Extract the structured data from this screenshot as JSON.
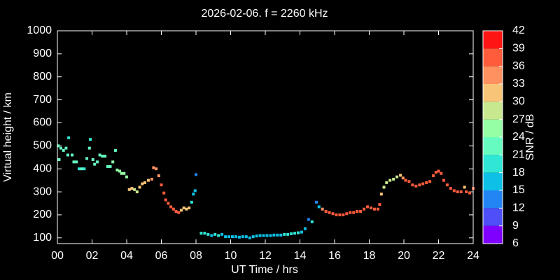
{
  "chart_data": {
    "type": "scatter",
    "title": "2026-02-06. f = 2260 kHz",
    "xlabel": "UT Time / hrs",
    "ylabel": "Virtual height / km",
    "xlim": [
      0,
      24
    ],
    "xticks": [
      {
        "value": 0,
        "label": "00"
      },
      {
        "value": 2,
        "label": "02"
      },
      {
        "value": 4,
        "label": "04"
      },
      {
        "value": 6,
        "label": "06"
      },
      {
        "value": 8,
        "label": "08"
      },
      10,
      12,
      14,
      16,
      18,
      20,
      22,
      24
    ],
    "ylim": [
      75,
      1000
    ],
    "yticks": [
      100,
      200,
      300,
      400,
      500,
      600,
      700,
      800,
      900,
      1000
    ],
    "colorbar": {
      "label": "SNR / dB",
      "lim": [
        6,
        42
      ],
      "ticks": [
        6,
        9,
        12,
        15,
        18,
        21,
        24,
        27,
        30,
        33,
        36,
        39,
        42
      ],
      "colors": [
        "#8000ff",
        "#4f4ff9",
        "#2385f3",
        "#0ec0e6",
        "#30e6d4",
        "#66fcc0",
        "#94ffa4",
        "#c8e890",
        "#f8c478",
        "#ff9060",
        "#ff5c3c",
        "#ff1414"
      ]
    },
    "x": [
      0.05,
      0.1,
      0.2,
      0.35,
      0.5,
      0.6,
      0.65,
      0.85,
      0.95,
      1.1,
      1.25,
      1.4,
      1.55,
      1.7,
      1.85,
      1.9,
      2.05,
      2.15,
      2.3,
      2.45,
      2.6,
      2.75,
      2.9,
      3.05,
      3.2,
      3.35,
      3.45,
      3.6,
      3.7,
      3.85,
      4.0,
      4.15,
      4.3,
      4.45,
      4.6,
      4.75,
      4.9,
      5.05,
      5.25,
      5.45,
      5.55,
      5.7,
      5.85,
      6.0,
      6.15,
      6.25,
      6.4,
      6.55,
      6.7,
      6.85,
      7.0,
      7.15,
      7.3,
      7.45,
      7.6,
      7.75,
      7.85,
      7.95,
      8.0,
      8.3,
      8.5,
      8.7,
      8.9,
      9.1,
      9.3,
      9.5,
      9.7,
      9.9,
      10.1,
      10.3,
      10.5,
      10.7,
      10.9,
      11.1,
      11.3,
      11.5,
      11.7,
      11.9,
      12.1,
      12.3,
      12.5,
      12.7,
      12.9,
      13.1,
      13.3,
      13.5,
      13.7,
      13.9,
      14.1,
      14.3,
      14.5,
      14.7,
      14.95,
      15.1,
      15.3,
      15.5,
      15.7,
      15.9,
      16.1,
      16.3,
      16.5,
      16.7,
      16.9,
      17.1,
      17.3,
      17.5,
      17.7,
      17.9,
      18.1,
      18.3,
      18.5,
      18.6,
      18.7,
      18.85,
      19.0,
      19.2,
      19.4,
      19.6,
      19.8,
      19.95,
      20.1,
      20.3,
      20.5,
      20.7,
      20.9,
      21.1,
      21.3,
      21.5,
      21.7,
      21.85,
      22.0,
      22.15,
      22.3,
      22.5,
      22.7,
      22.9,
      23.1,
      23.3,
      23.5,
      23.6,
      23.8,
      24.0
    ],
    "y": [
      500,
      440,
      490,
      480,
      490,
      460,
      535,
      460,
      430,
      430,
      400,
      400,
      400,
      445,
      490,
      528,
      440,
      420,
      430,
      460,
      455,
      455,
      410,
      410,
      430,
      480,
      395,
      390,
      380,
      380,
      365,
      310,
      315,
      310,
      300,
      320,
      335,
      340,
      350,
      355,
      405,
      400,
      370,
      330,
      295,
      265,
      250,
      235,
      225,
      215,
      210,
      220,
      230,
      225,
      230,
      255,
      290,
      305,
      375,
      120,
      120,
      115,
      110,
      115,
      110,
      115,
      105,
      105,
      105,
      105,
      103,
      105,
      105,
      100,
      105,
      108,
      110,
      110,
      110,
      110,
      112,
      112,
      112,
      115,
      115,
      118,
      120,
      122,
      125,
      140,
      180,
      170,
      255,
      235,
      225,
      215,
      210,
      205,
      200,
      200,
      200,
      205,
      210,
      210,
      215,
      215,
      225,
      235,
      230,
      225,
      225,
      245,
      290,
      320,
      340,
      350,
      355,
      365,
      372,
      360,
      350,
      345,
      330,
      325,
      330,
      335,
      340,
      345,
      370,
      385,
      390,
      380,
      350,
      330,
      315,
      305,
      300,
      300,
      320,
      300,
      295,
      315
    ],
    "snr": [
      22,
      22,
      22,
      22,
      22,
      22,
      20,
      22,
      22,
      22,
      20,
      22,
      20,
      22,
      22,
      20,
      22,
      22,
      23,
      22,
      23,
      22,
      21,
      23,
      24,
      22,
      24,
      24,
      25,
      25,
      26,
      30,
      30,
      29,
      29,
      31,
      32,
      32,
      32,
      33,
      33,
      33,
      34,
      36,
      36,
      36,
      37,
      37,
      37,
      37,
      37,
      30,
      30,
      30,
      31,
      18,
      16,
      15,
      13,
      18,
      18,
      18,
      17,
      18,
      18,
      17,
      17,
      16,
      16,
      17,
      16,
      16,
      17,
      16,
      16,
      16,
      16,
      16,
      17,
      17,
      17,
      17,
      17,
      18,
      18,
      18,
      18,
      18,
      17,
      15,
      13,
      19,
      13,
      15,
      33,
      36,
      37,
      37,
      37,
      37,
      37,
      37,
      37,
      37,
      37,
      37,
      37,
      36,
      37,
      37,
      37,
      37,
      31,
      29,
      29,
      28,
      28,
      29,
      30,
      34,
      37,
      37,
      38,
      38,
      38,
      38,
      37,
      37,
      37,
      38,
      38,
      37,
      37,
      37,
      37,
      37,
      37,
      37,
      30,
      37,
      37,
      38
    ]
  }
}
